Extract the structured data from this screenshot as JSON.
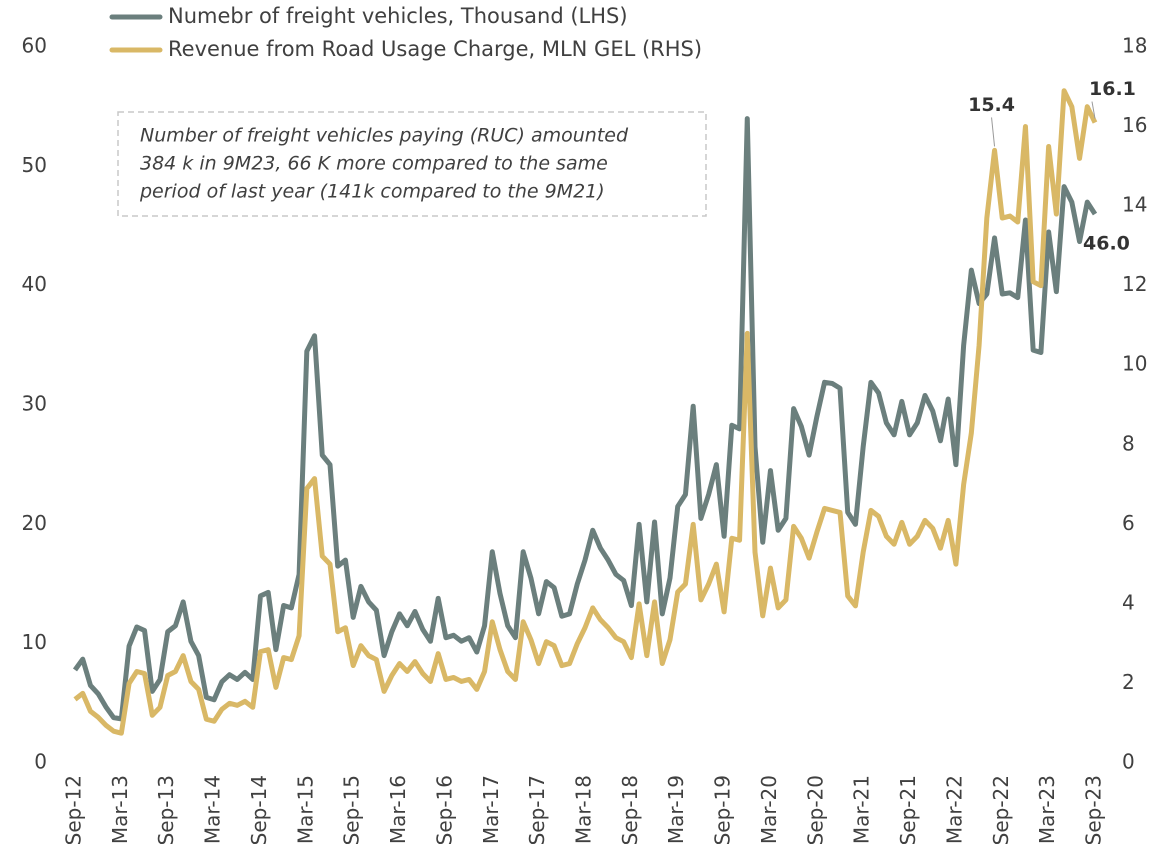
{
  "chart_data": {
    "type": "line",
    "categories": [
      "Sep-12",
      null,
      null,
      null,
      null,
      null,
      "Mar-13",
      null,
      null,
      null,
      null,
      null,
      "Sep-13",
      null,
      null,
      null,
      null,
      null,
      "Mar-14",
      null,
      null,
      null,
      null,
      null,
      "Sep-14",
      null,
      null,
      null,
      null,
      null,
      "Mar-15",
      null,
      null,
      null,
      null,
      null,
      "Sep-15",
      null,
      null,
      null,
      null,
      null,
      "Mar-16",
      null,
      null,
      null,
      null,
      null,
      "Sep-16",
      null,
      null,
      null,
      null,
      null,
      "Mar-17",
      null,
      null,
      null,
      null,
      null,
      "Sep-17",
      null,
      null,
      null,
      null,
      null,
      "Mar-18",
      null,
      null,
      null,
      null,
      null,
      "Sep-18",
      null,
      null,
      null,
      null,
      null,
      "Mar-19",
      null,
      null,
      null,
      null,
      null,
      "Sep-19",
      null,
      null,
      null,
      null,
      null,
      "Mar-20",
      null,
      null,
      null,
      null,
      null,
      "Sep-20",
      null,
      null,
      null,
      null,
      null,
      "Mar-21",
      null,
      null,
      null,
      null,
      null,
      "Sep-21",
      null,
      null,
      null,
      null,
      null,
      "Mar-22",
      null,
      null,
      null,
      null,
      null,
      "Sep-22",
      null,
      null,
      null,
      null,
      null,
      "Mar-23",
      null,
      null,
      null,
      null,
      null,
      "Sep-23"
    ],
    "series": [
      {
        "name": "Numebr of freight vehicles, Thousand (LHS)",
        "color": "#6b7f7d",
        "axis": "y",
        "values": [
          7.8,
          8.7,
          6.5,
          5.8,
          4.7,
          3.8,
          3.7,
          9.8,
          11.4,
          11.1,
          6.0,
          7.0,
          11.0,
          11.5,
          13.5,
          10.2,
          9.0,
          5.5,
          5.3,
          6.8,
          7.4,
          7.0,
          7.6,
          7.0,
          14.0,
          14.3,
          9.5,
          13.2,
          13.0,
          15.8,
          34.5,
          35.8,
          25.8,
          25.0,
          16.5,
          17.0,
          12.2,
          14.8,
          13.5,
          12.8,
          9.0,
          11.0,
          12.5,
          11.5,
          12.7,
          11.2,
          10.2,
          13.8,
          10.5,
          10.7,
          10.2,
          10.5,
          9.3,
          11.5,
          17.7,
          14.2,
          11.5,
          10.5,
          17.7,
          15.5,
          12.5,
          15.2,
          14.7,
          12.3,
          12.5,
          15.0,
          17.0,
          19.5,
          18.0,
          17.0,
          15.8,
          15.3,
          13.2,
          20.0,
          13.5,
          20.2,
          12.5,
          15.5,
          21.5,
          22.5,
          29.9,
          20.5,
          22.5,
          25.0,
          19.0,
          28.3,
          28.0,
          54.0,
          26.5,
          18.5,
          24.5,
          19.5,
          20.5,
          29.7,
          28.2,
          25.8,
          29.0,
          31.9,
          31.8,
          31.4,
          21.0,
          20.0,
          26.5,
          31.9,
          31.0,
          28.5,
          27.5,
          30.3,
          27.5,
          28.5,
          30.8,
          29.5,
          27.0,
          30.5,
          25.0,
          35.0,
          41.3,
          38.5,
          39.3,
          44.0,
          39.3,
          39.4,
          39.0,
          45.5,
          34.6,
          34.4,
          44.5,
          39.5,
          48.3,
          47.0,
          43.7,
          47.0,
          46.0
        ],
        "value_labels": [
          null,
          null,
          null,
          null,
          null,
          null,
          null,
          null,
          null,
          null,
          null,
          null,
          null,
          null,
          null,
          null,
          null,
          null,
          null,
          null,
          null,
          null,
          null,
          null,
          null,
          null,
          null,
          null,
          null,
          null,
          null,
          null,
          null,
          null,
          null,
          null,
          null,
          null,
          null,
          null,
          null,
          null,
          null,
          null,
          null,
          null,
          null,
          null,
          null,
          null,
          null,
          null,
          null,
          null,
          null,
          null,
          null,
          null,
          null,
          null,
          null,
          null,
          null,
          null,
          null,
          null,
          null,
          null,
          null,
          null,
          null,
          null,
          null,
          null,
          null,
          null,
          null,
          null,
          null,
          null,
          null,
          null,
          null,
          null,
          null,
          null,
          null,
          null,
          null,
          null,
          null,
          null,
          null,
          null,
          null,
          null,
          null,
          null,
          null,
          null,
          null,
          null,
          null,
          null,
          null,
          null,
          null,
          null,
          null,
          null,
          null,
          null,
          null,
          null,
          null,
          null,
          null,
          null,
          null,
          null,
          null,
          null,
          null,
          null,
          null,
          null,
          null,
          null,
          null,
          null,
          null,
          null,
          "46.0"
        ]
      },
      {
        "name": "Revenue from Road Usage Charge, MLN GEL (RHS)",
        "color": "#d9b866",
        "axis": "y2",
        "values": [
          1.6,
          1.75,
          1.3,
          1.15,
          0.95,
          0.8,
          0.75,
          2.0,
          2.3,
          2.25,
          1.2,
          1.4,
          2.2,
          2.3,
          2.7,
          2.05,
          1.85,
          1.1,
          1.05,
          1.35,
          1.5,
          1.45,
          1.55,
          1.4,
          2.8,
          2.85,
          1.9,
          2.65,
          2.6,
          3.2,
          6.9,
          7.15,
          5.2,
          5.0,
          3.3,
          3.4,
          2.45,
          2.95,
          2.7,
          2.6,
          1.8,
          2.2,
          2.5,
          2.3,
          2.55,
          2.25,
          2.05,
          2.75,
          2.1,
          2.15,
          2.05,
          2.1,
          1.85,
          2.3,
          3.55,
          2.85,
          2.3,
          2.1,
          3.55,
          3.1,
          2.5,
          3.05,
          2.95,
          2.45,
          2.5,
          3.0,
          3.4,
          3.9,
          3.6,
          3.4,
          3.15,
          3.05,
          2.65,
          4.0,
          2.7,
          4.05,
          2.5,
          3.1,
          4.3,
          4.5,
          6.0,
          4.1,
          4.5,
          5.0,
          3.8,
          5.65,
          5.6,
          10.8,
          5.3,
          3.7,
          4.9,
          3.9,
          4.1,
          5.95,
          5.65,
          5.15,
          5.8,
          6.4,
          6.35,
          6.3,
          4.2,
          3.95,
          5.3,
          6.35,
          6.2,
          5.7,
          5.5,
          6.05,
          5.5,
          5.7,
          6.1,
          5.9,
          5.4,
          6.1,
          5.0,
          7.0,
          8.3,
          10.5,
          13.7,
          15.4,
          13.7,
          13.75,
          13.6,
          16.0,
          12.1,
          12.0,
          15.5,
          13.8,
          16.9,
          16.5,
          15.2,
          16.5,
          16.1
        ],
        "value_labels": [
          null,
          null,
          null,
          null,
          null,
          null,
          null,
          null,
          null,
          null,
          null,
          null,
          null,
          null,
          null,
          null,
          null,
          null,
          null,
          null,
          null,
          null,
          null,
          null,
          null,
          null,
          null,
          null,
          null,
          null,
          null,
          null,
          null,
          null,
          null,
          null,
          null,
          null,
          null,
          null,
          null,
          null,
          null,
          null,
          null,
          null,
          null,
          null,
          null,
          null,
          null,
          null,
          null,
          null,
          null,
          null,
          null,
          null,
          null,
          null,
          null,
          null,
          null,
          null,
          null,
          null,
          null,
          null,
          null,
          null,
          null,
          null,
          null,
          null,
          null,
          null,
          null,
          null,
          null,
          null,
          null,
          null,
          null,
          null,
          null,
          null,
          null,
          null,
          null,
          null,
          null,
          null,
          null,
          null,
          null,
          null,
          null,
          null,
          null,
          null,
          null,
          null,
          null,
          null,
          null,
          null,
          null,
          null,
          null,
          null,
          null,
          null,
          null,
          null,
          null,
          null,
          null,
          null,
          null,
          "15.4",
          null,
          null,
          null,
          null,
          null,
          null,
          null,
          null,
          null,
          null,
          null,
          null,
          "16.1"
        ]
      }
    ],
    "ylim": [
      0,
      60
    ],
    "yticks": [
      0,
      10,
      20,
      30,
      40,
      50,
      60
    ],
    "y2lim": [
      0,
      18
    ],
    "y2ticks": [
      0,
      2,
      4,
      6,
      8,
      10,
      12,
      14,
      16,
      18
    ],
    "grid": false,
    "legend": "top-left",
    "annotation": [
      "Number of freight vehicles paying (RUC) amounted",
      "384 k  in 9M23, 66 K more compared to the same",
      "period of last year (141k compared to the 9M21)"
    ]
  }
}
